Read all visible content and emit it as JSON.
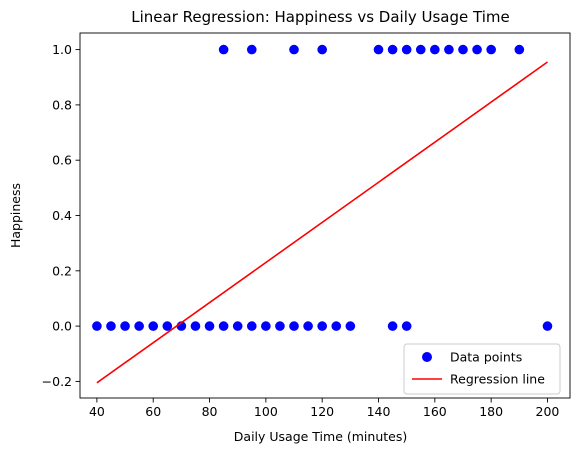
{
  "chart_data": {
    "type": "scatter",
    "title": "Linear Regression: Happiness vs Daily Usage Time",
    "xlabel": "Daily Usage Time (minutes)",
    "ylabel": "Happiness",
    "xlim": [
      34,
      208
    ],
    "ylim": [
      -0.26,
      1.06
    ],
    "x_ticks": [
      40,
      60,
      80,
      100,
      120,
      140,
      160,
      180,
      200
    ],
    "x_tick_labels": [
      "40",
      "60",
      "80",
      "100",
      "120",
      "140",
      "160",
      "180",
      "200"
    ],
    "y_ticks": [
      -0.2,
      0.0,
      0.2,
      0.4,
      0.6,
      0.8,
      1.0
    ],
    "y_tick_labels": [
      "−0.2",
      "0.0",
      "0.2",
      "0.4",
      "0.6",
      "0.8",
      "1.0"
    ],
    "grid": false,
    "legend_position": "lower-right",
    "series": [
      {
        "name": "Data points",
        "kind": "scatter",
        "color": "#0000ff",
        "points": [
          [
            40,
            0
          ],
          [
            45,
            0
          ],
          [
            50,
            0
          ],
          [
            55,
            0
          ],
          [
            60,
            0
          ],
          [
            65,
            0
          ],
          [
            70,
            0
          ],
          [
            75,
            0
          ],
          [
            80,
            0
          ],
          [
            85,
            0
          ],
          [
            90,
            0
          ],
          [
            95,
            0
          ],
          [
            100,
            0
          ],
          [
            105,
            0
          ],
          [
            110,
            0
          ],
          [
            115,
            0
          ],
          [
            120,
            0
          ],
          [
            125,
            0
          ],
          [
            130,
            0
          ],
          [
            145,
            0
          ],
          [
            150,
            0
          ],
          [
            200,
            0
          ],
          [
            85,
            1
          ],
          [
            95,
            1
          ],
          [
            110,
            1
          ],
          [
            120,
            1
          ],
          [
            140,
            1
          ],
          [
            145,
            1
          ],
          [
            150,
            1
          ],
          [
            155,
            1
          ],
          [
            160,
            1
          ],
          [
            165,
            1
          ],
          [
            170,
            1
          ],
          [
            175,
            1
          ],
          [
            180,
            1
          ],
          [
            190,
            1
          ]
        ]
      },
      {
        "name": "Regression line",
        "kind": "line",
        "color": "#ff0000",
        "points": [
          [
            40,
            -0.205
          ],
          [
            200,
            0.955
          ]
        ]
      }
    ]
  }
}
